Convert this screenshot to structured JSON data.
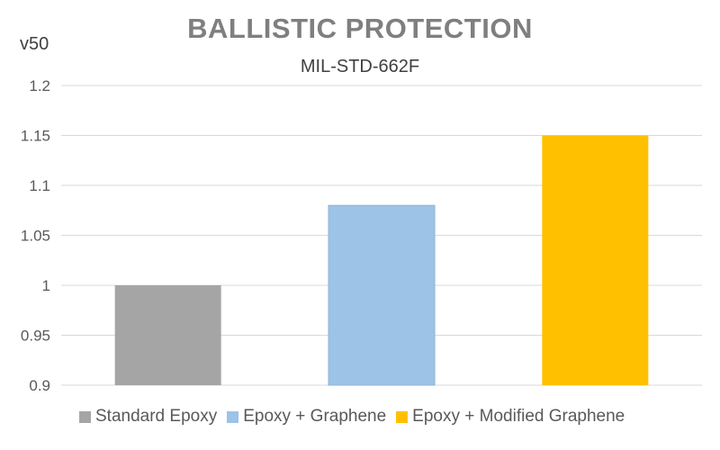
{
  "chart_data": {
    "type": "bar",
    "title": "BALLISTIC PROTECTION",
    "subtitle": "MIL-STD-662F",
    "ylabel": "v50",
    "xlabel": "",
    "ylim": [
      0.9,
      1.2
    ],
    "y_ticks": [
      "0.9",
      "0.95",
      "1",
      "1.05",
      "1.1",
      "1.15",
      "1.2"
    ],
    "grid": true,
    "legend_position": "bottom",
    "categories": [
      "Standard Epoxy",
      "Epoxy + Graphene",
      "Epoxy + Modified Graphene"
    ],
    "values": [
      1.0,
      1.08,
      1.15
    ],
    "colors": [
      "#a5a5a5",
      "#9dc3e6",
      "#ffc000"
    ]
  }
}
